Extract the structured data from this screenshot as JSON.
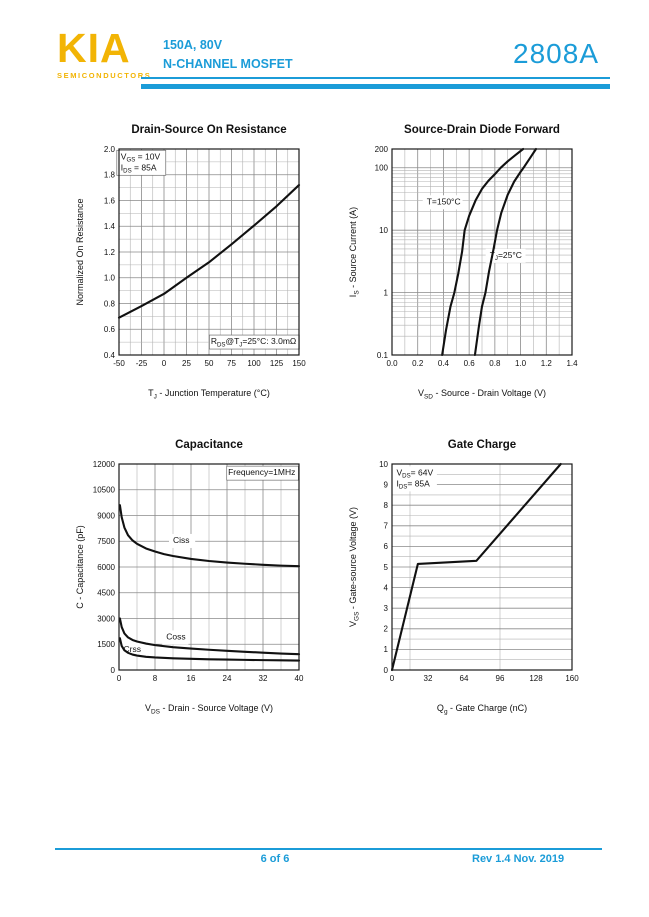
{
  "header": {
    "logo_text": "KIA",
    "logo_subtext": "SEMICONDUCTORS",
    "rating": "150A, 80V",
    "device_type": "N-CHANNEL MOSFET",
    "part_number": "2808A"
  },
  "footer": {
    "page_indicator": "6 of 6",
    "revision": "Rev 1.4 Nov. 2019"
  },
  "colors": {
    "accent_blue": "#1b9cd8",
    "logo_yellow": "#f2b405",
    "curve_black": "#111111",
    "grid_gray": "#8f8f8f"
  },
  "chart_data": [
    {
      "type": "line",
      "title": "Drain-Source On Resistance",
      "xlabel": "T~J~ - Junction Temperature (°C)",
      "ylabel": "Normalized On Resistance",
      "xscale": "linear",
      "yscale": "linear",
      "xlim": [
        -50,
        150
      ],
      "ylim": [
        0.4,
        2.0
      ],
      "xticks": [
        -50,
        -25,
        0,
        25,
        50,
        75,
        100,
        125,
        150
      ],
      "xtick_labels": [
        "-50",
        "-25",
        "0",
        "25",
        "50",
        "75",
        "100",
        "125",
        "150"
      ],
      "yticks": [
        0.4,
        0.6,
        0.8,
        1.0,
        1.2,
        1.4,
        1.6,
        1.8,
        2.0
      ],
      "ytick_labels": [
        "0.4",
        "0.6",
        "0.8",
        "1.0",
        "1.2",
        "1.4",
        "1.6",
        "1.8",
        "2.0"
      ],
      "xgrid": [
        -37.5,
        -12.5,
        12.5,
        37.5,
        62.5,
        87.5,
        112.5,
        137.5
      ],
      "ygrid": [
        0.5,
        0.7,
        0.9,
        1.1,
        1.3,
        1.5,
        1.7,
        1.9
      ],
      "series": [
        {
          "name": "normalized-rds-on",
          "points": [
            [
              -50,
              0.69
            ],
            [
              -25,
              0.78
            ],
            [
              0,
              0.875
            ],
            [
              25,
              1.0
            ],
            [
              50,
              1.12
            ],
            [
              75,
              1.26
            ],
            [
              100,
              1.405
            ],
            [
              125,
              1.555
            ],
            [
              150,
              1.72
            ]
          ]
        }
      ],
      "annotations": [
        {
          "text": [
            "V~GS~ = 10V",
            "I~DS~ = 85A"
          ],
          "x": -48,
          "y": 1.92,
          "anchor": "start",
          "box": true
        },
        {
          "text": "R~DS~@T~J~=25°C: 3.0mΩ",
          "x": 147,
          "y": 0.485,
          "anchor": "end",
          "box": true
        }
      ]
    },
    {
      "type": "line",
      "title": "Source-Drain Diode Forward",
      "xlabel": "V~SD~ - Source - Drain Voltage (V)",
      "ylabel": "I~S~ - Source Current (A)",
      "xscale": "linear",
      "yscale": "log",
      "xlim": [
        0,
        1.4
      ],
      "ylim": [
        0.1,
        200
      ],
      "xticks": [
        0,
        0.2,
        0.4,
        0.6,
        0.8,
        1.0,
        1.2,
        1.4
      ],
      "xtick_labels": [
        "0.0",
        "0.2",
        "0.4",
        "0.6",
        "0.8",
        "1.0",
        "1.2",
        "1.4"
      ],
      "yticks": [
        0.1,
        1,
        10,
        100,
        200
      ],
      "ytick_labels": [
        "0.1",
        "1",
        "10",
        "100",
        "200"
      ],
      "xgrid": [
        0.1,
        0.3,
        0.5,
        0.7,
        0.9,
        1.1,
        1.3
      ],
      "ygrid": [],
      "series": [
        {
          "name": "T-150C",
          "points": [
            [
              0.39,
              0.1
            ],
            [
              0.42,
              0.25
            ],
            [
              0.455,
              0.6
            ],
            [
              0.485,
              1.0
            ],
            [
              0.515,
              2.0
            ],
            [
              0.545,
              4.5
            ],
            [
              0.565,
              10
            ],
            [
              0.6,
              17
            ],
            [
              0.65,
              30
            ],
            [
              0.7,
              46
            ],
            [
              0.75,
              62
            ],
            [
              0.8,
              79
            ],
            [
              0.845,
              100
            ],
            [
              0.9,
              127
            ],
            [
              0.96,
              160
            ],
            [
              1.02,
              200
            ]
          ]
        },
        {
          "name": "T-25C",
          "points": [
            [
              0.645,
              0.1
            ],
            [
              0.675,
              0.28
            ],
            [
              0.7,
              0.6
            ],
            [
              0.727,
              1.0
            ],
            [
              0.755,
              2.2
            ],
            [
              0.79,
              5
            ],
            [
              0.817,
              10
            ],
            [
              0.85,
              19
            ],
            [
              0.9,
              37
            ],
            [
              0.95,
              60
            ],
            [
              1.0,
              86
            ],
            [
              1.03,
              105
            ],
            [
              1.08,
              150
            ],
            [
              1.12,
              200
            ]
          ]
        }
      ],
      "annotations": [
        {
          "text": "T=150°C",
          "x": 0.27,
          "y": 26,
          "anchor": "start",
          "bg": true
        },
        {
          "text": "T~J~=25°C",
          "x": 0.76,
          "y": 3.6,
          "anchor": "start",
          "bg": true
        }
      ]
    },
    {
      "type": "line",
      "title": "Capacitance",
      "xlabel": "V~DS~ - Drain - Source Voltage (V)",
      "ylabel": "C - Capacitance (pF)",
      "xscale": "linear",
      "yscale": "linear",
      "xlim": [
        0,
        40
      ],
      "ylim": [
        0,
        12000
      ],
      "xticks": [
        0,
        8,
        16,
        24,
        32,
        40
      ],
      "xtick_labels": [
        "0",
        "8",
        "16",
        "24",
        "32",
        "40"
      ],
      "yticks": [
        0,
        1500,
        3000,
        4500,
        6000,
        7500,
        9000,
        10500,
        12000
      ],
      "ytick_labels": [
        "0",
        "1500",
        "3000",
        "4500",
        "6000",
        "7500",
        "9000",
        "10500",
        "12000"
      ],
      "xgrid": [
        4,
        12,
        20,
        28,
        36
      ],
      "ygrid": [],
      "series": [
        {
          "name": "Ciss",
          "points": [
            [
              0.2,
              9600
            ],
            [
              0.6,
              8900
            ],
            [
              1.2,
              8300
            ],
            [
              2,
              7850
            ],
            [
              3,
              7550
            ],
            [
              4,
              7350
            ],
            [
              6,
              7080
            ],
            [
              8,
              6900
            ],
            [
              10,
              6750
            ],
            [
              12,
              6640
            ],
            [
              16,
              6470
            ],
            [
              20,
              6350
            ],
            [
              24,
              6260
            ],
            [
              28,
              6190
            ],
            [
              32,
              6130
            ],
            [
              36,
              6080
            ],
            [
              40,
              6050
            ]
          ]
        },
        {
          "name": "Coss",
          "points": [
            [
              0.2,
              3000
            ],
            [
              0.6,
              2500
            ],
            [
              1.2,
              2130
            ],
            [
              2,
              1900
            ],
            [
              3,
              1750
            ],
            [
              4,
              1660
            ],
            [
              6,
              1540
            ],
            [
              8,
              1450
            ],
            [
              12,
              1330
            ],
            [
              16,
              1250
            ],
            [
              20,
              1180
            ],
            [
              24,
              1120
            ],
            [
              28,
              1060
            ],
            [
              32,
              1010
            ],
            [
              36,
              960
            ],
            [
              40,
              920
            ]
          ]
        },
        {
          "name": "Crss",
          "points": [
            [
              0.2,
              1850
            ],
            [
              0.6,
              1400
            ],
            [
              1.2,
              1150
            ],
            [
              2,
              1000
            ],
            [
              3,
              900
            ],
            [
              4,
              840
            ],
            [
              6,
              770
            ],
            [
              8,
              730
            ],
            [
              12,
              680
            ],
            [
              16,
              650
            ],
            [
              20,
              625
            ],
            [
              24,
              605
            ],
            [
              28,
              590
            ],
            [
              32,
              575
            ],
            [
              36,
              562
            ],
            [
              40,
              550
            ]
          ]
        }
      ],
      "annotations": [
        {
          "text": "Frequency=1MHz",
          "x": 39.2,
          "y": 11350,
          "anchor": "end",
          "box": true
        },
        {
          "text": "Ciss",
          "x": 12,
          "y": 7400,
          "anchor": "start",
          "bg": true
        },
        {
          "text": "Coss",
          "x": 10.5,
          "y": 1780,
          "anchor": "start",
          "bg": true
        },
        {
          "text": "Crss",
          "x": 1.0,
          "y": 1060,
          "anchor": "start",
          "bg": true
        }
      ]
    },
    {
      "type": "line",
      "title": "Gate Charge",
      "xlabel": "Q~g~ - Gate Charge (nC)",
      "ylabel": "V~GS~ - Gate-source Voltage (V)",
      "xscale": "linear",
      "yscale": "linear",
      "xlim": [
        0,
        160
      ],
      "ylim": [
        0,
        10
      ],
      "xticks": [
        0,
        32,
        64,
        96,
        128,
        160
      ],
      "xtick_labels": [
        "0",
        "32",
        "64",
        "96",
        "128",
        "160"
      ],
      "xtick_lines": false,
      "yticks": [
        0,
        1,
        2,
        3,
        4,
        5,
        6,
        7,
        8,
        9,
        10
      ],
      "ytick_labels": [
        "0",
        "1",
        "2",
        "3",
        "4",
        "5",
        "6",
        "7",
        "8",
        "9",
        "10"
      ],
      "xgrid": [
        16,
        96
      ],
      "ygrid": [
        0.5,
        1.5,
        2.5,
        3.5,
        4.5,
        5.5,
        6.5,
        7.5,
        8.5,
        9.5
      ],
      "series": [
        {
          "name": "gate-charge",
          "points": [
            [
              0,
              0
            ],
            [
              23,
              5.15
            ],
            [
              75,
              5.3
            ],
            [
              150,
              10
            ]
          ]
        }
      ],
      "annotations": [
        {
          "text": [
            "V~DS~= 64V",
            "I~DS~= 85A"
          ],
          "x": 4,
          "y": 9.45,
          "anchor": "start",
          "bg": true
        }
      ]
    }
  ]
}
